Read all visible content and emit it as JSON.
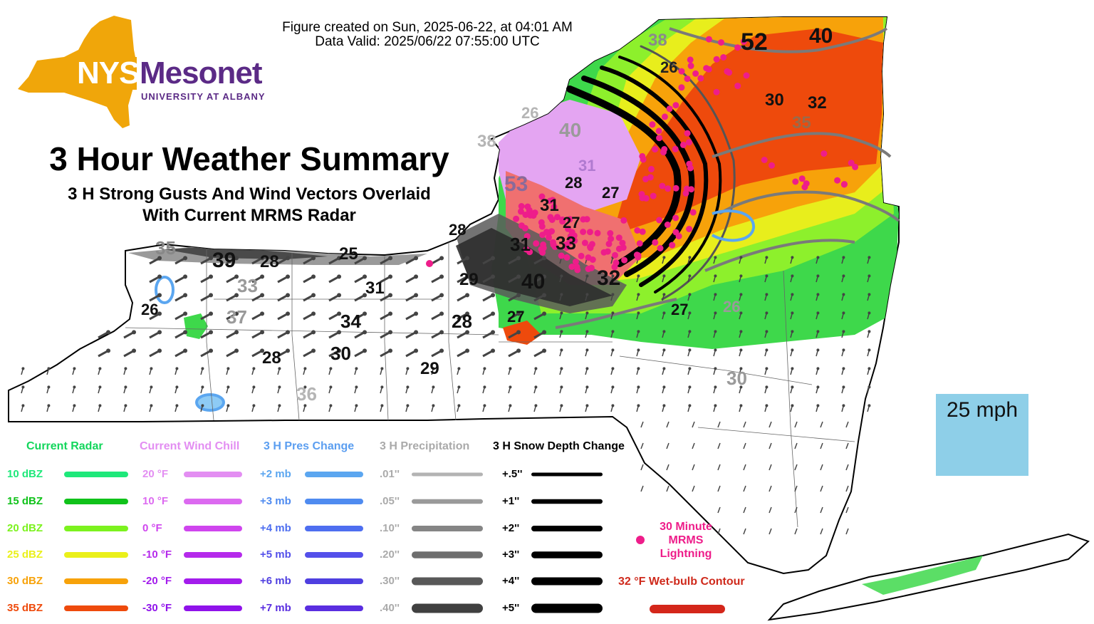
{
  "header": {
    "created_line": "Figure created on Sun, 2025-06-22, at 04:01 AM",
    "valid_line": "Data Valid: 2025/06/22 07:55:00 UTC"
  },
  "logo": {
    "nys": "NYS",
    "mesonet": "Mesonet",
    "university": "UNIVERSITY AT ALBANY",
    "colors": {
      "state": "#f0a60a",
      "text": "#5b2a86"
    }
  },
  "titles": {
    "main": "3 Hour Weather Summary",
    "sub_line1": "3 H Strong Gusts And Wind Vectors Overlaid",
    "sub_line2": "With Current MRMS Radar"
  },
  "scale": {
    "label": "25 mph",
    "icon": "arrow-right-icon",
    "color": "#8ecfe8"
  },
  "legend": {
    "radar": {
      "title": "Current Radar",
      "title_color": "#13d65c",
      "items": [
        {
          "label": "10 dBZ",
          "color": "#1ee87a"
        },
        {
          "label": "15 dBZ",
          "color": "#10c21a"
        },
        {
          "label": "20 dBZ",
          "color": "#7cf21e"
        },
        {
          "label": "25 dBZ",
          "color": "#eaf01a"
        },
        {
          "label": "30 dBZ",
          "color": "#f7a20a"
        },
        {
          "label": "35 dBZ",
          "color": "#ee4a0c"
        }
      ]
    },
    "wind_chill": {
      "title": "Current Wind Chill",
      "title_color": "#e38ef2",
      "items": [
        {
          "label": "20 °F",
          "color": "#e38ef2"
        },
        {
          "label": "10 °F",
          "color": "#dc6af0"
        },
        {
          "label": "0 °F",
          "color": "#cf45ee"
        },
        {
          "label": "-10 °F",
          "color": "#b52aeb"
        },
        {
          "label": "-20 °F",
          "color": "#a31cec"
        },
        {
          "label": "-30 °F",
          "color": "#8f12ea"
        }
      ]
    },
    "pressure": {
      "title": "3 H Pres Change",
      "title_color": "#5b9ef0",
      "items": [
        {
          "label": "+2 mb",
          "color": "#5ba6f0"
        },
        {
          "label": "+3 mb",
          "color": "#4f8bf0"
        },
        {
          "label": "+4 mb",
          "color": "#4e6ef0"
        },
        {
          "label": "+5 mb",
          "color": "#5450ea"
        },
        {
          "label": "+6 mb",
          "color": "#4f3fe0"
        },
        {
          "label": "+7 mb",
          "color": "#5a2ee0"
        }
      ]
    },
    "precip": {
      "title": "3 H Precipitation",
      "title_color": "#aaaaaa",
      "items": [
        {
          "label": ".01''",
          "color": "#b3b3b3"
        },
        {
          "label": ".05''",
          "color": "#9a9a9a"
        },
        {
          "label": ".10''",
          "color": "#858585"
        },
        {
          "label": ".20''",
          "color": "#6e6e6e"
        },
        {
          "label": ".30''",
          "color": "#585858"
        },
        {
          "label": ".40''",
          "color": "#404040"
        }
      ]
    },
    "snow": {
      "title": "3 H Snow Depth Change",
      "title_color": "#000000",
      "items": [
        {
          "label": "+.5''",
          "color": "#000000"
        },
        {
          "label": "+1''",
          "color": "#000000"
        },
        {
          "label": "+2''",
          "color": "#000000"
        },
        {
          "label": "+3''",
          "color": "#000000"
        },
        {
          "label": "+4''",
          "color": "#000000"
        },
        {
          "label": "+5''",
          "color": "#000000"
        }
      ]
    },
    "lightning": {
      "line1": "30 Minute",
      "line2": "MRMS",
      "line3": "Lightning",
      "color": "#ee1d8a"
    },
    "wetbulb": {
      "label": "32 °F Wet-bulb Contour",
      "color": "#d4261a"
    }
  },
  "map": {
    "gusts_black": [
      {
        "t": "39"
      },
      {
        "t": "28"
      },
      {
        "t": "25"
      },
      {
        "t": "31"
      },
      {
        "t": "34"
      },
      {
        "t": "28"
      },
      {
        "t": "30"
      },
      {
        "t": "28"
      },
      {
        "t": "29"
      },
      {
        "t": "26"
      },
      {
        "t": "29"
      },
      {
        "t": "40"
      },
      {
        "t": "27"
      },
      {
        "t": "31"
      },
      {
        "t": "33"
      },
      {
        "t": "31"
      },
      {
        "t": "27"
      },
      {
        "t": "28"
      },
      {
        "t": "27"
      },
      {
        "t": "52"
      },
      {
        "t": "40"
      },
      {
        "t": "30"
      },
      {
        "t": "32"
      },
      {
        "t": "26"
      },
      {
        "t": "27"
      },
      {
        "t": "32"
      }
    ],
    "gusts_gray": [
      {
        "t": "35"
      },
      {
        "t": "33"
      },
      {
        "t": "37"
      },
      {
        "t": "36"
      },
      {
        "t": "30"
      },
      {
        "t": "38"
      },
      {
        "t": "35"
      },
      {
        "t": "26"
      },
      {
        "t": "38"
      },
      {
        "t": "26"
      },
      {
        "t": "40"
      },
      {
        "t": "53"
      },
      {
        "t": "31"
      },
      {
        "t": "28"
      }
    ]
  }
}
